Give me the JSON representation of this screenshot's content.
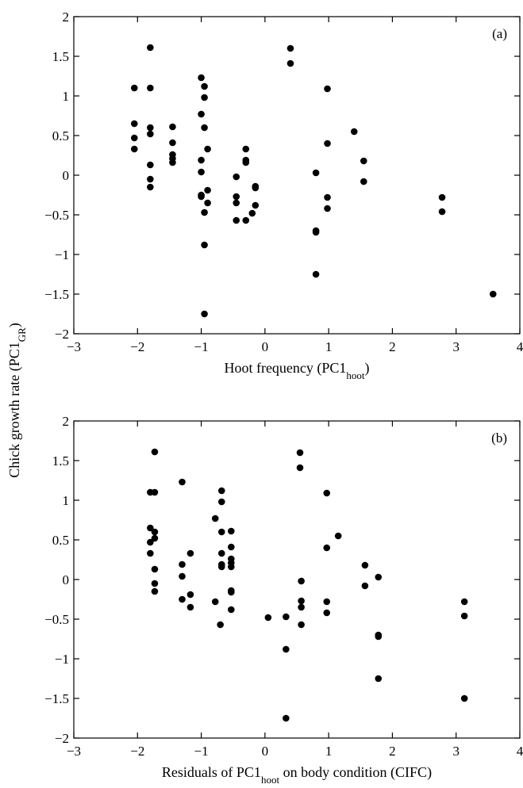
{
  "ylabel": {
    "text": "Chick growth rate (PC1",
    "sub": "GR",
    "suffix": ")"
  },
  "chart_data": [
    {
      "type": "scatter",
      "panel_label": "(a)",
      "xlabel": {
        "text": "Hoot frequency (PC1",
        "sub": "hoot",
        "suffix": ")"
      },
      "xlim": [
        -3,
        4
      ],
      "ylim": [
        -2,
        2
      ],
      "xticks": [
        "−3",
        "−2",
        "−1",
        "0",
        "1",
        "2",
        "3",
        "4"
      ],
      "yticks": [
        "−2",
        "−1.5",
        "−1",
        "−0.5",
        "0",
        "0.5",
        "1",
        "1.5",
        "2"
      ],
      "points": [
        [
          -2.05,
          1.1
        ],
        [
          -2.05,
          0.65
        ],
        [
          -2.05,
          0.47
        ],
        [
          -2.05,
          0.33
        ],
        [
          -1.8,
          1.61
        ],
        [
          -1.8,
          1.1
        ],
        [
          -1.8,
          0.6
        ],
        [
          -1.8,
          0.52
        ],
        [
          -1.8,
          0.13
        ],
        [
          -1.8,
          -0.05
        ],
        [
          -1.8,
          -0.15
        ],
        [
          -1.45,
          0.61
        ],
        [
          -1.45,
          0.41
        ],
        [
          -1.45,
          0.26
        ],
        [
          -1.45,
          0.21
        ],
        [
          -1.45,
          0.16
        ],
        [
          -1.0,
          1.23
        ],
        [
          -1.0,
          0.77
        ],
        [
          -1.0,
          0.19
        ],
        [
          -1.0,
          0.04
        ],
        [
          -1.0,
          -0.25
        ],
        [
          -1.0,
          -0.27
        ],
        [
          -0.95,
          1.12
        ],
        [
          -0.95,
          0.98
        ],
        [
          -0.95,
          0.6
        ],
        [
          -0.95,
          -0.47
        ],
        [
          -0.95,
          -0.88
        ],
        [
          -0.95,
          -1.75
        ],
        [
          -0.9,
          0.33
        ],
        [
          -0.9,
          -0.19
        ],
        [
          -0.9,
          -0.35
        ],
        [
          -0.45,
          -0.02
        ],
        [
          -0.45,
          -0.27
        ],
        [
          -0.45,
          -0.35
        ],
        [
          -0.45,
          -0.57
        ],
        [
          -0.3,
          0.33
        ],
        [
          -0.3,
          0.19
        ],
        [
          -0.3,
          0.16
        ],
        [
          -0.3,
          -0.57
        ],
        [
          -0.15,
          -0.14
        ],
        [
          -0.15,
          -0.16
        ],
        [
          -0.15,
          -0.38
        ],
        [
          -0.2,
          -0.48
        ],
        [
          0.4,
          1.6
        ],
        [
          0.4,
          1.41
        ],
        [
          0.8,
          0.03
        ],
        [
          0.8,
          -0.7
        ],
        [
          0.8,
          -0.72
        ],
        [
          0.8,
          -1.25
        ],
        [
          0.98,
          1.09
        ],
        [
          0.98,
          0.4
        ],
        [
          0.98,
          -0.28
        ],
        [
          0.98,
          -0.42
        ],
        [
          1.4,
          0.55
        ],
        [
          1.55,
          0.18
        ],
        [
          1.55,
          -0.08
        ],
        [
          2.78,
          -0.28
        ],
        [
          2.78,
          -0.46
        ],
        [
          3.58,
          -1.5
        ]
      ]
    },
    {
      "type": "scatter",
      "panel_label": "(b)",
      "xlabel": {
        "text": "Residuals of PC1",
        "sub": "hoot",
        "suffix": " on body condition (CIFC)"
      },
      "xlim": [
        -3,
        4
      ],
      "ylim": [
        -2,
        2
      ],
      "xticks": [
        "−3",
        "−2",
        "−1",
        "0",
        "1",
        "2",
        "3",
        "4"
      ],
      "yticks": [
        "−2",
        "−1.5",
        "−1",
        "−0.5",
        "0",
        "0.5",
        "1",
        "1.5",
        "2"
      ],
      "points": [
        [
          -1.8,
          1.1
        ],
        [
          -1.8,
          0.65
        ],
        [
          -1.8,
          0.47
        ],
        [
          -1.8,
          0.33
        ],
        [
          -1.73,
          1.61
        ],
        [
          -1.73,
          1.1
        ],
        [
          -1.73,
          0.6
        ],
        [
          -1.73,
          0.52
        ],
        [
          -1.73,
          0.13
        ],
        [
          -1.73,
          -0.05
        ],
        [
          -1.73,
          -0.15
        ],
        [
          -1.3,
          1.23
        ],
        [
          -1.3,
          0.19
        ],
        [
          -1.3,
          0.04
        ],
        [
          -1.3,
          -0.25
        ],
        [
          -1.17,
          0.33
        ],
        [
          -1.17,
          -0.19
        ],
        [
          -1.17,
          -0.35
        ],
        [
          -0.78,
          0.77
        ],
        [
          -0.78,
          -0.28
        ],
        [
          -0.68,
          1.12
        ],
        [
          -0.68,
          0.98
        ],
        [
          -0.68,
          0.6
        ],
        [
          -0.68,
          0.33
        ],
        [
          -0.68,
          0.19
        ],
        [
          -0.68,
          0.16
        ],
        [
          -0.7,
          -0.57
        ],
        [
          -0.53,
          0.61
        ],
        [
          -0.53,
          0.41
        ],
        [
          -0.53,
          0.26
        ],
        [
          -0.53,
          0.21
        ],
        [
          -0.53,
          0.16
        ],
        [
          -0.53,
          -0.14
        ],
        [
          -0.53,
          -0.16
        ],
        [
          -0.53,
          -0.38
        ],
        [
          0.05,
          -0.48
        ],
        [
          0.33,
          -0.47
        ],
        [
          0.33,
          -0.88
        ],
        [
          0.33,
          -1.75
        ],
        [
          0.55,
          1.6
        ],
        [
          0.55,
          1.41
        ],
        [
          0.57,
          -0.02
        ],
        [
          0.57,
          -0.27
        ],
        [
          0.57,
          -0.35
        ],
        [
          0.57,
          -0.57
        ],
        [
          0.97,
          1.09
        ],
        [
          0.97,
          0.4
        ],
        [
          0.97,
          -0.28
        ],
        [
          0.97,
          -0.42
        ],
        [
          1.15,
          0.55
        ],
        [
          1.57,
          0.18
        ],
        [
          1.57,
          -0.08
        ],
        [
          1.78,
          0.03
        ],
        [
          1.78,
          -0.7
        ],
        [
          1.78,
          -0.72
        ],
        [
          1.78,
          -1.25
        ],
        [
          3.13,
          -0.28
        ],
        [
          3.13,
          -0.46
        ],
        [
          3.13,
          -1.5
        ]
      ]
    }
  ]
}
